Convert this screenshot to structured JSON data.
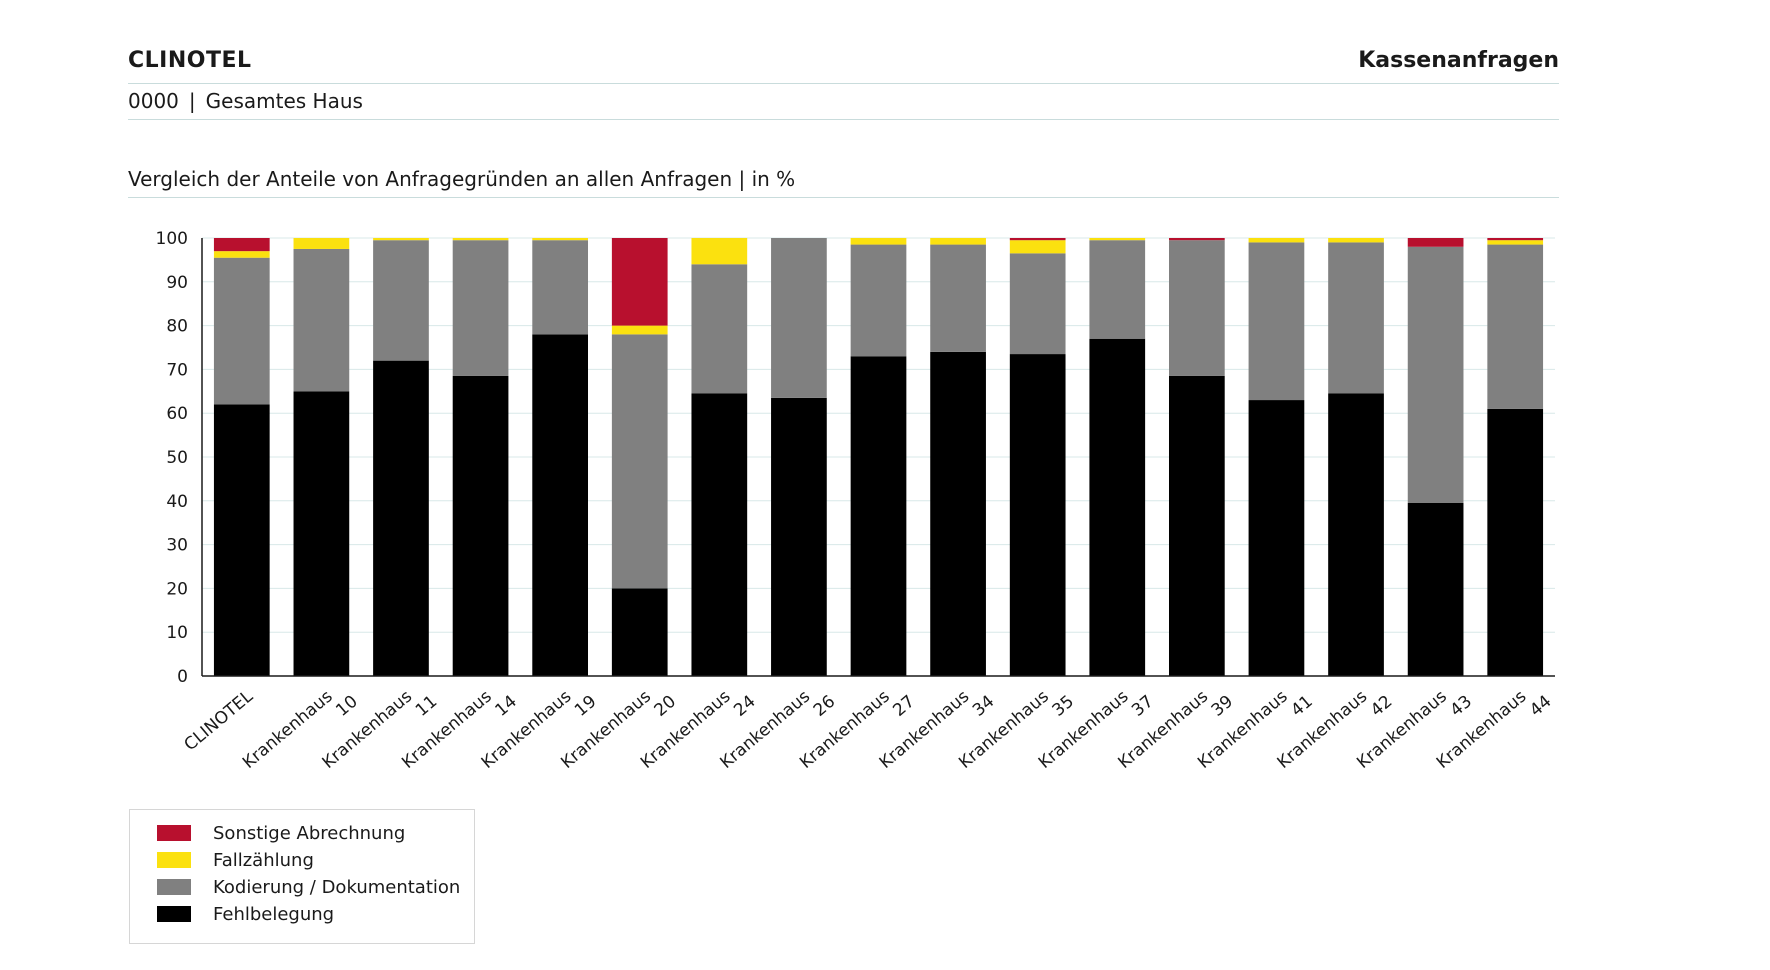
{
  "header": {
    "brand": "CLINOTEL",
    "report_title": "Kassenanfragen",
    "unit_code": "0000",
    "separator": "|",
    "unit_name": "Gesamtes Haus"
  },
  "chart_title": "Vergleich der Anteile von Anfragegründen an allen Anfragen | in %",
  "colors": {
    "sonstige": "#b8102e",
    "fallzaehlung": "#fbe10f",
    "kodierung": "#808080",
    "fehlbelegung": "#000000",
    "grid": "#d8e8e8"
  },
  "chart_data": {
    "type": "bar",
    "stacked": true,
    "title": "Vergleich der Anteile von Anfragegründen an allen Anfragen | in %",
    "xlabel": "",
    "ylabel": "",
    "ylim": [
      0,
      100
    ],
    "yticks": [
      0,
      10,
      20,
      30,
      40,
      50,
      60,
      70,
      80,
      90,
      100
    ],
    "grid": true,
    "legend_position": "bottom-left",
    "categories": [
      [
        "CLINOTEL"
      ],
      [
        "Krankenhaus",
        "10"
      ],
      [
        "Krankenhaus",
        "11"
      ],
      [
        "Krankenhaus",
        "14"
      ],
      [
        "Krankenhaus",
        "19"
      ],
      [
        "Krankenhaus",
        "20"
      ],
      [
        "Krankenhaus",
        "24"
      ],
      [
        "Krankenhaus",
        "26"
      ],
      [
        "Krankenhaus",
        "27"
      ],
      [
        "Krankenhaus",
        "34"
      ],
      [
        "Krankenhaus",
        "35"
      ],
      [
        "Krankenhaus",
        "37"
      ],
      [
        "Krankenhaus",
        "39"
      ],
      [
        "Krankenhaus",
        "41"
      ],
      [
        "Krankenhaus",
        "42"
      ],
      [
        "Krankenhaus",
        "43"
      ],
      [
        "Krankenhaus",
        "44"
      ]
    ],
    "series": [
      {
        "name": "Fehlbelegung",
        "key": "fehlbelegung",
        "values": [
          62,
          65,
          72,
          68.5,
          78,
          20,
          64.5,
          63.5,
          73,
          74,
          73.5,
          77,
          68.5,
          63,
          64.5,
          39.5,
          61
        ]
      },
      {
        "name": "Kodierung / Dokumentation",
        "key": "kodierung",
        "values": [
          33.5,
          32.5,
          27.5,
          31,
          21.5,
          58,
          29.5,
          36.5,
          25.5,
          24.5,
          23,
          22.5,
          31,
          36,
          34.5,
          58.5,
          37.5
        ]
      },
      {
        "name": "Fallzählung",
        "key": "fallzaehlung",
        "values": [
          1.5,
          2.5,
          0.5,
          0.5,
          0.5,
          2,
          6,
          0,
          1.5,
          1.5,
          3,
          0.5,
          0,
          1,
          1,
          0,
          1
        ]
      },
      {
        "name": "Sonstige Abrechnung",
        "key": "sonstige",
        "values": [
          3,
          0,
          0,
          0,
          0,
          20,
          0,
          0,
          0,
          0,
          0.5,
          0,
          0.5,
          0,
          0,
          2,
          0.5
        ]
      }
    ]
  },
  "legend": {
    "items": [
      {
        "label": "Sonstige Abrechnung",
        "key": "sonstige"
      },
      {
        "label": "Fallzählung",
        "key": "fallzaehlung"
      },
      {
        "label": "Kodierung / Dokumentation",
        "key": "kodierung"
      },
      {
        "label": "Fehlbelegung",
        "key": "fehlbelegung"
      }
    ]
  }
}
